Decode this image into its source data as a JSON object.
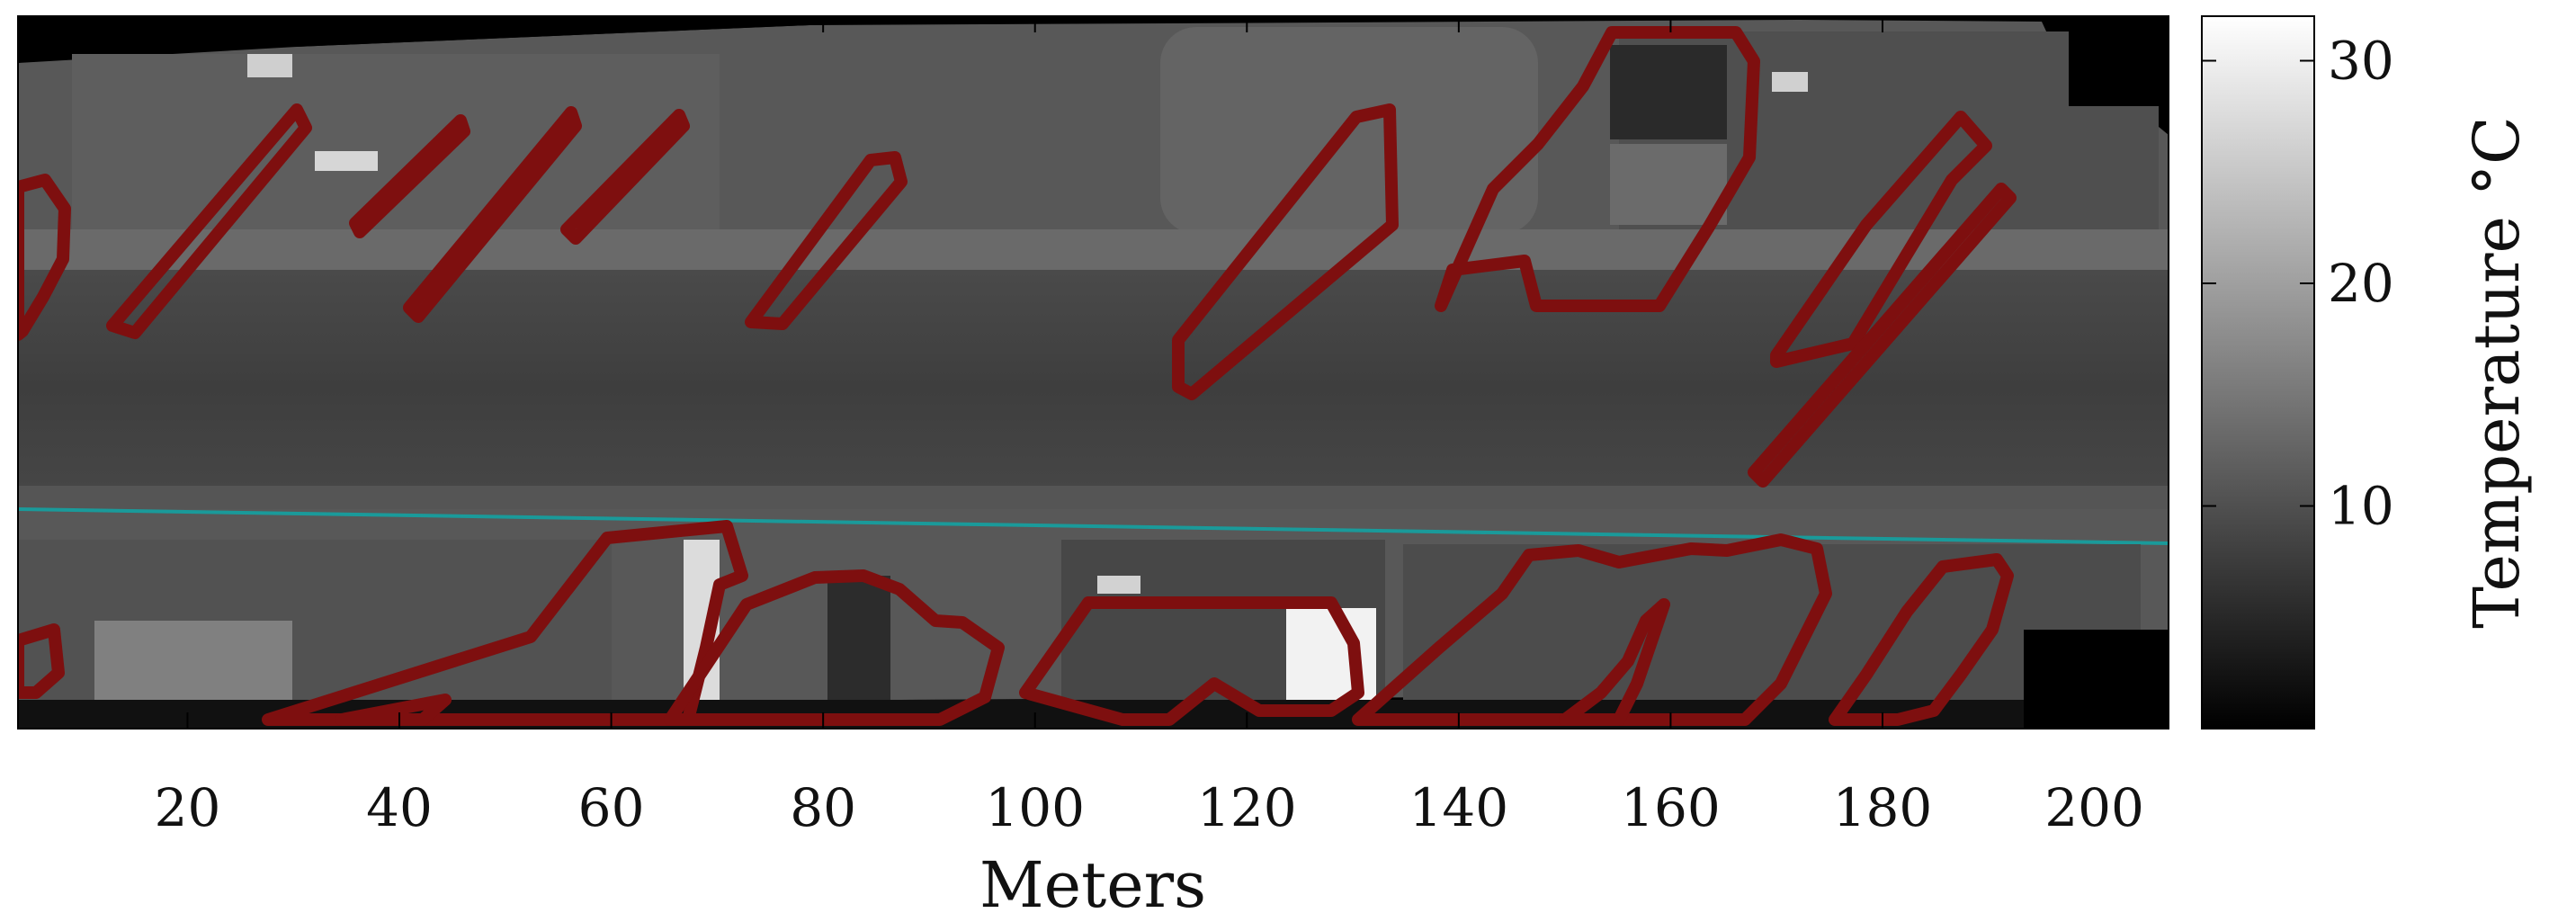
{
  "chart_data": {
    "type": "heatmap",
    "title": "",
    "xlabel": "Meters",
    "ylabel": "",
    "xlim": [
      4,
      207
    ],
    "xticks": [
      20,
      40,
      60,
      80,
      100,
      120,
      140,
      160,
      180,
      200
    ],
    "colorbar": {
      "label": "Temperature °C",
      "range": [
        0,
        32
      ],
      "ticks": [
        10,
        20,
        30
      ],
      "colormap": "gray"
    },
    "overlay": {
      "shadow_outline_color": "#7e0f0f",
      "road_line_color": "#1a9a9a"
    }
  },
  "colors": {
    "road": "#3d3d3d",
    "sidewalk": "#6e6e6e",
    "lot": "#4a4a4a",
    "background": "#ffffff",
    "frame": "#000000"
  }
}
